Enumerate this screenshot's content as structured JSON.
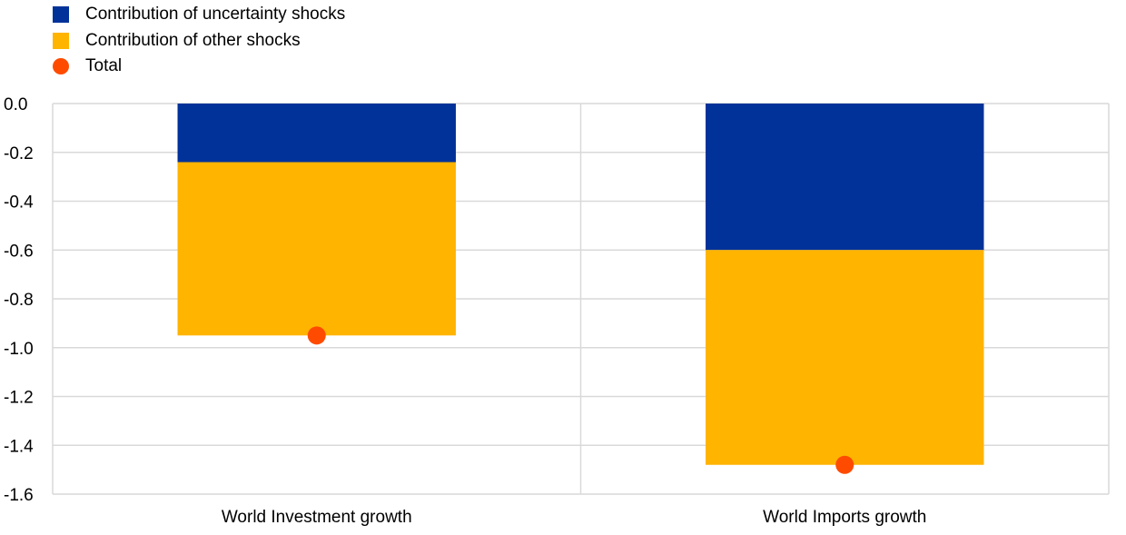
{
  "chart_data": {
    "type": "bar",
    "stacked": true,
    "categories": [
      "World Investment growth",
      "World Imports growth"
    ],
    "series": [
      {
        "name": "Contribution of uncertainty shocks",
        "values": [
          -0.24,
          -0.6
        ],
        "color": "#003299"
      },
      {
        "name": "Contribution of other shocks",
        "values": [
          -0.71,
          -0.88
        ],
        "color": "#FFB400"
      }
    ],
    "total": {
      "name": "Total",
      "values": [
        -0.95,
        -1.48
      ],
      "color": "#FF4B00"
    },
    "ylim": [
      -1.6,
      0.0
    ],
    "yticks": [
      "0.0",
      "-0.2",
      "-0.4",
      "-0.6",
      "-0.8",
      "-1.0",
      "-1.2",
      "-1.4",
      "-1.6"
    ],
    "grid": true,
    "legend_position": "top-left",
    "title": "",
    "xlabel": "",
    "ylabel": ""
  }
}
